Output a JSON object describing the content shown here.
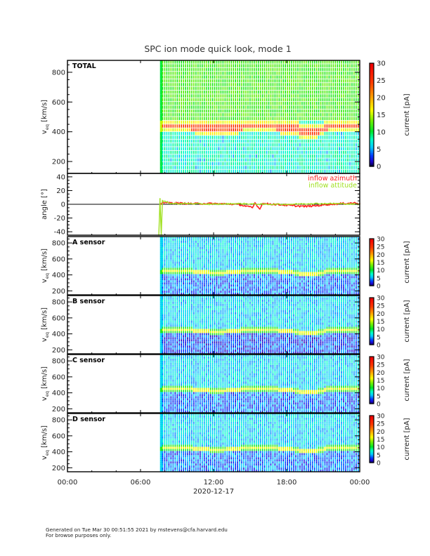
{
  "page": {
    "title": "SPC ion mode quick look, mode 1",
    "footer_line1": "Generated on Tue Mar 30 00:51:55 2021 by mstevens@cfa.harvard.edu",
    "footer_line2": "For browse purposes only."
  },
  "colors": {
    "azimuth": "#ff2020",
    "altitude": "#a0e020",
    "axis": "#000000"
  },
  "chart_data": [
    {
      "type": "heatmap",
      "panel": "total",
      "label": "TOTAL",
      "ylabel": "v_eq [km/s]",
      "ylabel_main": "v",
      "ylabel_sub": "eq",
      "ylabel_unit": "[km/s]",
      "ylim": [
        120,
        880
      ],
      "yticks": [
        200,
        400,
        600,
        800
      ],
      "ytick_labels": [
        "200",
        "400",
        "600",
        "800"
      ],
      "colorbar": {
        "label": "current [pA]",
        "range": [
          0,
          30
        ],
        "ticks": [
          0,
          5,
          10,
          15,
          20,
          25,
          30
        ],
        "tick_labels": [
          "0",
          "5",
          "10",
          "15",
          "20",
          "25",
          "30"
        ]
      },
      "data_start_hour": 7.6,
      "peak_velocity": 430,
      "description": "Peak current band near 400-470 km/s (10-25 pA); background ~3-6 pA"
    },
    {
      "type": "line",
      "panel": "angle",
      "ylabel": "angle [°]",
      "ylim": [
        -45,
        45
      ],
      "yticks": [
        -40,
        -20,
        0,
        20,
        40
      ],
      "ytick_labels": [
        "-40",
        "-20",
        "0",
        "20",
        "40"
      ],
      "zero_line": true,
      "legend": [
        "inflow azimuth",
        "inflow attitude"
      ],
      "legend_position": "top-right",
      "series": [
        {
          "name": "inflow azimuth",
          "x": [
            7.6,
            7.8,
            8.5,
            10,
            12,
            14,
            15.2,
            15.4,
            15.8,
            16,
            17,
            18.5,
            19.5,
            20.5,
            21.5,
            22.5,
            23.5,
            24
          ],
          "y": [
            -2,
            3,
            2,
            1,
            1,
            0,
            -5,
            2,
            -7,
            1,
            0,
            -2,
            -3,
            -2,
            0,
            1,
            2,
            1
          ]
        },
        {
          "name": "inflow attitude",
          "x": [
            7.5,
            7.6,
            7.7,
            7.8,
            8.5,
            10,
            12,
            14,
            16,
            18,
            20,
            22,
            24
          ],
          "y": [
            -45,
            8,
            -45,
            5,
            1,
            1,
            0,
            1,
            0,
            0,
            1,
            1,
            0
          ]
        }
      ]
    },
    {
      "type": "heatmap",
      "panel": "A",
      "label": "A sensor",
      "ylabel_main": "v",
      "ylabel_sub": "eq",
      "ylabel_unit": "[km/s]",
      "ylim": [
        150,
        880
      ],
      "yticks": [
        200,
        400,
        600,
        800
      ],
      "ytick_labels": [
        "200",
        "400",
        "600",
        "800"
      ],
      "colorbar": {
        "label": "current [pA]",
        "range": [
          0,
          30
        ],
        "ticks": [
          0,
          5,
          10,
          15,
          20,
          25,
          30
        ],
        "tick_labels": [
          "0",
          "5",
          "10",
          "15",
          "20",
          "25",
          "30"
        ]
      },
      "data_start_hour": 7.6,
      "peak_velocity": 440
    },
    {
      "type": "heatmap",
      "panel": "B",
      "label": "B sensor",
      "ylabel_main": "v",
      "ylabel_sub": "eq",
      "ylabel_unit": "[km/s]",
      "ylim": [
        150,
        880
      ],
      "yticks": [
        200,
        400,
        600,
        800
      ],
      "ytick_labels": [
        "200",
        "400",
        "600",
        "800"
      ],
      "colorbar": {
        "label": "current [pA]",
        "range": [
          0,
          30
        ],
        "ticks": [
          0,
          5,
          10,
          15,
          20,
          25,
          30
        ],
        "tick_labels": [
          "0",
          "5",
          "10",
          "15",
          "20",
          "25",
          "30"
        ]
      },
      "data_start_hour": 7.6,
      "peak_velocity": 440
    },
    {
      "type": "heatmap",
      "panel": "C",
      "label": "C sensor",
      "ylabel_main": "v",
      "ylabel_sub": "eq",
      "ylabel_unit": "[km/s]",
      "ylim": [
        150,
        880
      ],
      "yticks": [
        200,
        400,
        600,
        800
      ],
      "ytick_labels": [
        "200",
        "400",
        "600",
        "800"
      ],
      "colorbar": {
        "label": "current [pA]",
        "range": [
          0,
          30
        ],
        "ticks": [
          0,
          5,
          10,
          15,
          20,
          25,
          30
        ],
        "tick_labels": [
          "0",
          "5",
          "10",
          "15",
          "20",
          "25",
          "30"
        ]
      },
      "data_start_hour": 7.6,
      "peak_velocity": 440
    },
    {
      "type": "heatmap",
      "panel": "D",
      "label": "D sensor",
      "ylabel_main": "v",
      "ylabel_sub": "eq",
      "ylabel_unit": "[km/s]",
      "ylim": [
        150,
        880
      ],
      "yticks": [
        200,
        400,
        600,
        800
      ],
      "ytick_labels": [
        "200",
        "400",
        "600",
        "800"
      ],
      "colorbar": {
        "label": "current [pA]",
        "range": [
          0,
          30
        ],
        "ticks": [
          0,
          5,
          10,
          15,
          20,
          25,
          30
        ],
        "tick_labels": [
          "0",
          "5",
          "10",
          "15",
          "20",
          "25",
          "30"
        ]
      },
      "data_start_hour": 7.6,
      "peak_velocity": 440
    }
  ],
  "xaxis": {
    "range_hours": [
      0,
      24
    ],
    "ticks": [
      0,
      6,
      12,
      18,
      24
    ],
    "tick_labels": [
      "00:00",
      "06:00",
      "12:00",
      "18:00",
      "00:00"
    ],
    "date_label": "2020-12-17"
  }
}
